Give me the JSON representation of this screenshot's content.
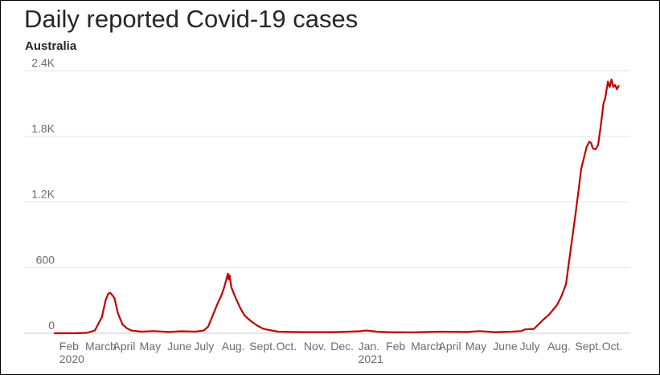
{
  "header": {
    "title": "Daily reported Covid-19 cases",
    "subtitle": "Australia"
  },
  "colors": {
    "line": "#c00000",
    "grid": "#e3e3e3",
    "axis": "#cccccc"
  },
  "chart_data": {
    "type": "line",
    "title": "Daily reported Covid-19 cases",
    "subtitle": "Australia",
    "xlabel": "",
    "ylabel": "",
    "ylim": [
      0,
      2400
    ],
    "xlim": [
      "2020-01-25",
      "2021-10-31"
    ],
    "grid": true,
    "legend": "none",
    "y_ticks": [
      {
        "value": 0,
        "label": "0"
      },
      {
        "value": 600,
        "label": "600"
      },
      {
        "value": 1200,
        "label": "1.2K"
      },
      {
        "value": 1800,
        "label": "1.8K"
      },
      {
        "value": 2400,
        "label": "2.4K"
      }
    ],
    "x_ticks": [
      {
        "date": "2020-02-01",
        "label": "Feb",
        "year": "2020"
      },
      {
        "date": "2020-03-01",
        "label": "March"
      },
      {
        "date": "2020-04-01",
        "label": "April"
      },
      {
        "date": "2020-05-01",
        "label": "May"
      },
      {
        "date": "2020-06-01",
        "label": "June"
      },
      {
        "date": "2020-07-01",
        "label": "July"
      },
      {
        "date": "2020-08-01",
        "label": "Aug."
      },
      {
        "date": "2020-09-01",
        "label": "Sept."
      },
      {
        "date": "2020-10-01",
        "label": "Oct."
      },
      {
        "date": "2020-11-01",
        "label": "Nov."
      },
      {
        "date": "2020-12-01",
        "label": "Dec."
      },
      {
        "date": "2021-01-01",
        "label": "Jan.",
        "year": "2021"
      },
      {
        "date": "2021-02-01",
        "label": "Feb"
      },
      {
        "date": "2021-03-01",
        "label": "March"
      },
      {
        "date": "2021-04-01",
        "label": "April"
      },
      {
        "date": "2021-05-01",
        "label": "May"
      },
      {
        "date": "2021-06-01",
        "label": "June"
      },
      {
        "date": "2021-07-01",
        "label": "July"
      },
      {
        "date": "2021-08-01",
        "label": "Aug."
      },
      {
        "date": "2021-09-01",
        "label": "Sept."
      },
      {
        "date": "2021-10-01",
        "label": "Oct."
      }
    ],
    "series": [
      {
        "color": "#c00000",
        "points": [
          [
            "2020-01-25",
            0
          ],
          [
            "2020-02-15",
            0
          ],
          [
            "2020-03-01",
            4
          ],
          [
            "2020-03-10",
            25
          ],
          [
            "2020-03-18",
            150
          ],
          [
            "2020-03-22",
            300
          ],
          [
            "2020-03-25",
            360
          ],
          [
            "2020-03-27",
            370
          ],
          [
            "2020-03-29",
            355
          ],
          [
            "2020-04-01",
            320
          ],
          [
            "2020-04-05",
            180
          ],
          [
            "2020-04-10",
            80
          ],
          [
            "2020-04-15",
            45
          ],
          [
            "2020-04-20",
            25
          ],
          [
            "2020-05-01",
            15
          ],
          [
            "2020-05-15",
            20
          ],
          [
            "2020-06-01",
            12
          ],
          [
            "2020-06-15",
            18
          ],
          [
            "2020-07-01",
            15
          ],
          [
            "2020-07-10",
            25
          ],
          [
            "2020-07-15",
            60
          ],
          [
            "2020-07-20",
            160
          ],
          [
            "2020-07-25",
            260
          ],
          [
            "2020-07-30",
            350
          ],
          [
            "2020-08-02",
            420
          ],
          [
            "2020-08-04",
            480
          ],
          [
            "2020-08-06",
            545
          ],
          [
            "2020-08-07",
            490
          ],
          [
            "2020-08-08",
            530
          ],
          [
            "2020-08-10",
            420
          ],
          [
            "2020-08-15",
            320
          ],
          [
            "2020-08-20",
            230
          ],
          [
            "2020-08-25",
            160
          ],
          [
            "2020-09-01",
            110
          ],
          [
            "2020-09-08",
            70
          ],
          [
            "2020-09-15",
            40
          ],
          [
            "2020-10-01",
            15
          ],
          [
            "2020-10-15",
            12
          ],
          [
            "2020-11-01",
            10
          ],
          [
            "2020-11-15",
            10
          ],
          [
            "2020-12-01",
            10
          ],
          [
            "2020-12-10",
            12
          ],
          [
            "2020-12-20",
            15
          ],
          [
            "2021-01-01",
            18
          ],
          [
            "2021-01-08",
            25
          ],
          [
            "2021-01-20",
            15
          ],
          [
            "2021-02-01",
            10
          ],
          [
            "2021-03-01",
            8
          ],
          [
            "2021-04-01",
            15
          ],
          [
            "2021-05-01",
            12
          ],
          [
            "2021-05-15",
            20
          ],
          [
            "2021-06-01",
            10
          ],
          [
            "2021-06-20",
            15
          ],
          [
            "2021-07-01",
            20
          ],
          [
            "2021-07-05",
            35
          ],
          [
            "2021-07-15",
            40
          ],
          [
            "2021-07-20",
            80
          ],
          [
            "2021-07-25",
            120
          ],
          [
            "2021-08-01",
            170
          ],
          [
            "2021-08-10",
            260
          ],
          [
            "2021-08-15",
            340
          ],
          [
            "2021-08-20",
            450
          ],
          [
            "2021-08-25",
            750
          ],
          [
            "2021-08-30",
            1050
          ],
          [
            "2021-09-03",
            1300
          ],
          [
            "2021-09-06",
            1500
          ],
          [
            "2021-09-09",
            1600
          ],
          [
            "2021-09-12",
            1700
          ],
          [
            "2021-09-15",
            1750
          ],
          [
            "2021-09-17",
            1740
          ],
          [
            "2021-09-19",
            1690
          ],
          [
            "2021-09-22",
            1680
          ],
          [
            "2021-09-25",
            1720
          ],
          [
            "2021-09-28",
            1900
          ],
          [
            "2021-10-01",
            2100
          ],
          [
            "2021-10-03",
            2150
          ],
          [
            "2021-10-05",
            2250
          ],
          [
            "2021-10-06",
            2300
          ],
          [
            "2021-10-08",
            2250
          ],
          [
            "2021-10-10",
            2320
          ],
          [
            "2021-10-12",
            2250
          ],
          [
            "2021-10-14",
            2270
          ],
          [
            "2021-10-16",
            2230
          ],
          [
            "2021-10-18",
            2260
          ]
        ]
      }
    ]
  }
}
